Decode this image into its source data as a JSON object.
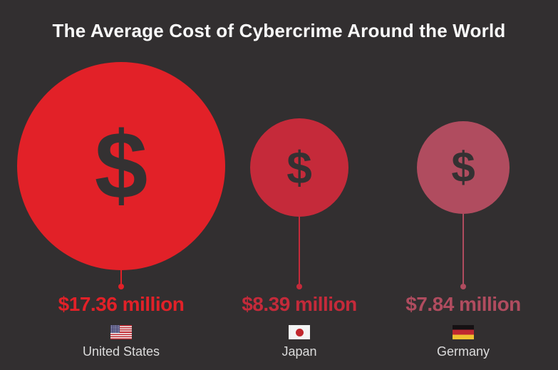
{
  "title": "The Average Cost of Cybercrime Around the World",
  "dollar_symbol": "$",
  "colors": {
    "background": "#322F30",
    "title_text": "#FAFAFA",
    "country_label_text": "#DCDCDC",
    "dollar_glyph": "#343132",
    "us_red": "#E22128",
    "japan_red": "#C52A3A",
    "germany_red": "#B04C5F"
  },
  "chart_data": {
    "type": "bubble",
    "title": "The Average Cost of Cybercrime Around the World",
    "categories": [
      "United States",
      "Japan",
      "Germany"
    ],
    "values": [
      17.36,
      8.39,
      7.84
    ],
    "unit": "million US dollars",
    "value_labels": [
      "$17.36 million",
      "$8.39 million",
      "$7.84 million"
    ],
    "series_colors": [
      "#E22128",
      "#C52A3A",
      "#B04C5F"
    ],
    "legend": "none",
    "layout_hint": "single horizontal row on dark background; circle diameter proportional to value; dollar-sign glyph inside each circle; connector line with end dot pointing to value label, flag icon and country name below"
  },
  "countries": [
    {
      "name": "United States",
      "value_label": "$17.36 million",
      "value": 17.36,
      "color": "#E22128",
      "flag_icon": "us-flag-icon"
    },
    {
      "name": "Japan",
      "value_label": "$8.39 million",
      "value": 8.39,
      "color": "#C52A3A",
      "flag_icon": "japan-flag-icon"
    },
    {
      "name": "Germany",
      "value_label": "$7.84 million",
      "value": 7.84,
      "color": "#B04C5F",
      "flag_icon": "germany-flag-icon"
    }
  ]
}
